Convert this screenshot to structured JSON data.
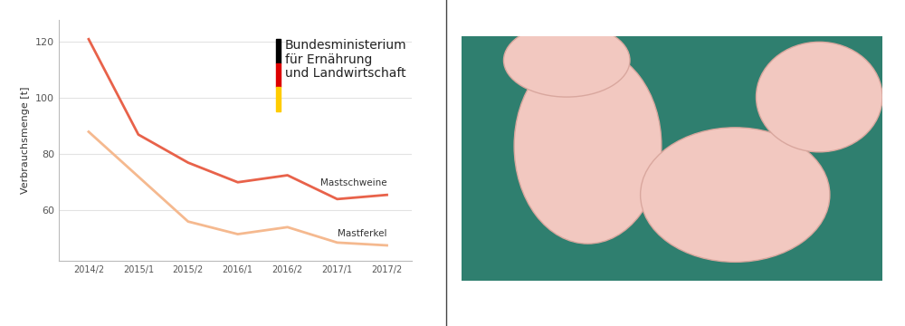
{
  "chart_data": {
    "type": "line",
    "y_label": "Verbrauchsmenge [t]",
    "annotations": [
      "Bundesministerium\nfür Ernährung\nund Landwirtschaft"
    ],
    "categories": [
      "2014/2",
      "2015/1",
      "2015/2",
      "2016/1",
      "2016/2",
      "2017/1",
      "2017/2"
    ],
    "series": [
      {
        "name": "Mastschweine",
        "color": "#e8624a",
        "values": [
          121,
          87,
          77,
          70,
          72.5,
          64,
          65.5
        ]
      },
      {
        "name": "Mastferkel",
        "color": "#f5b98f",
        "values": [
          88,
          72,
          56,
          51.5,
          54,
          48.5,
          47.5
        ]
      }
    ],
    "ylim": [
      42,
      128
    ],
    "yticks": [
      60,
      80,
      100,
      120
    ],
    "grid": true
  }
}
